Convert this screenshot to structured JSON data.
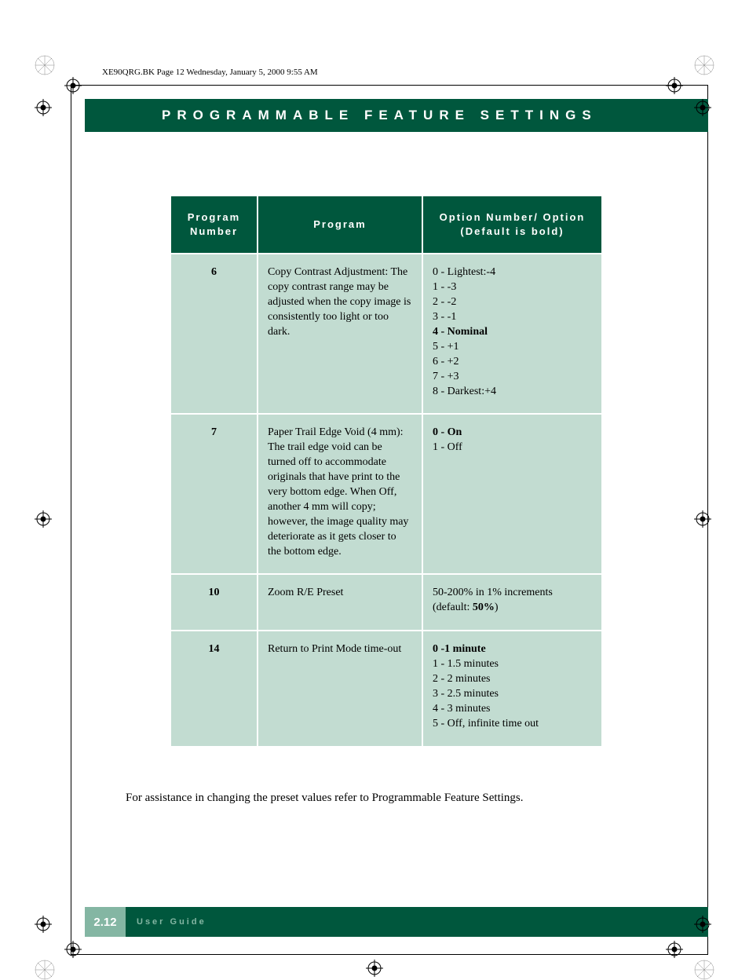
{
  "meta_line": "XE90QRG.BK  Page 12  Wednesday, January 5, 2000  9:55 AM",
  "header_title": "PROGRAMMABLE FEATURE SETTINGS",
  "colors": {
    "band_green": "#00573d",
    "cell_green": "#c2dcd1",
    "footer_accent": "#84b6a3",
    "page_bg": "#ffffff",
    "text": "#000000",
    "header_text": "#ffffff"
  },
  "table": {
    "headers": {
      "col1": "Program Number",
      "col2": "Program",
      "col3": "Option Number/ Option (Default is bold)"
    },
    "rows": [
      {
        "num": "6",
        "program": "Copy Contrast Adjustment: The copy contrast range may be adjusted when the copy image is consistently too light or too dark.",
        "options": [
          {
            "text": "0 - Lightest:-4",
            "bold": false
          },
          {
            "text": "1 - -3",
            "bold": false
          },
          {
            "text": "2 - -2",
            "bold": false
          },
          {
            "text": "3 - -1",
            "bold": false
          },
          {
            "text": "4 - Nominal",
            "bold": true
          },
          {
            "text": "5 - +1",
            "bold": false
          },
          {
            "text": "6 - +2",
            "bold": false
          },
          {
            "text": "7 - +3",
            "bold": false
          },
          {
            "text": "8 - Darkest:+4",
            "bold": false
          }
        ]
      },
      {
        "num": "7",
        "program": "Paper Trail Edge Void (4 mm):  The trail edge void can be turned off to accommodate originals that have print to the very bottom edge.  When Off, another 4 mm will copy; however, the image quality may deteriorate as it gets closer to the bottom edge.",
        "options": [
          {
            "text": "0 - On",
            "bold": true
          },
          {
            "text": "1 - Off",
            "bold": false
          }
        ]
      },
      {
        "num": "10",
        "program": "Zoom R/E Preset",
        "options": [
          {
            "text": "50-200% in 1% increments (default: 50%)",
            "bold": false,
            "bold_inner": "50%"
          }
        ]
      },
      {
        "num": "14",
        "program": "Return to Print Mode time-out",
        "options": [
          {
            "text": "0 -1 minute",
            "bold": true
          },
          {
            "text": "1 - 1.5 minutes",
            "bold": false
          },
          {
            "text": "2 - 2 minutes",
            "bold": false
          },
          {
            "text": "3 - 2.5 minutes",
            "bold": false
          },
          {
            "text": "4 - 3 minutes",
            "bold": false
          },
          {
            "text": "5 - Off, infinite time out",
            "bold": false
          }
        ]
      }
    ]
  },
  "note_text": "For assistance in changing the preset values refer to Programmable Feature Settings.",
  "footer": {
    "page_number": "2.12",
    "label": "User Guide"
  }
}
